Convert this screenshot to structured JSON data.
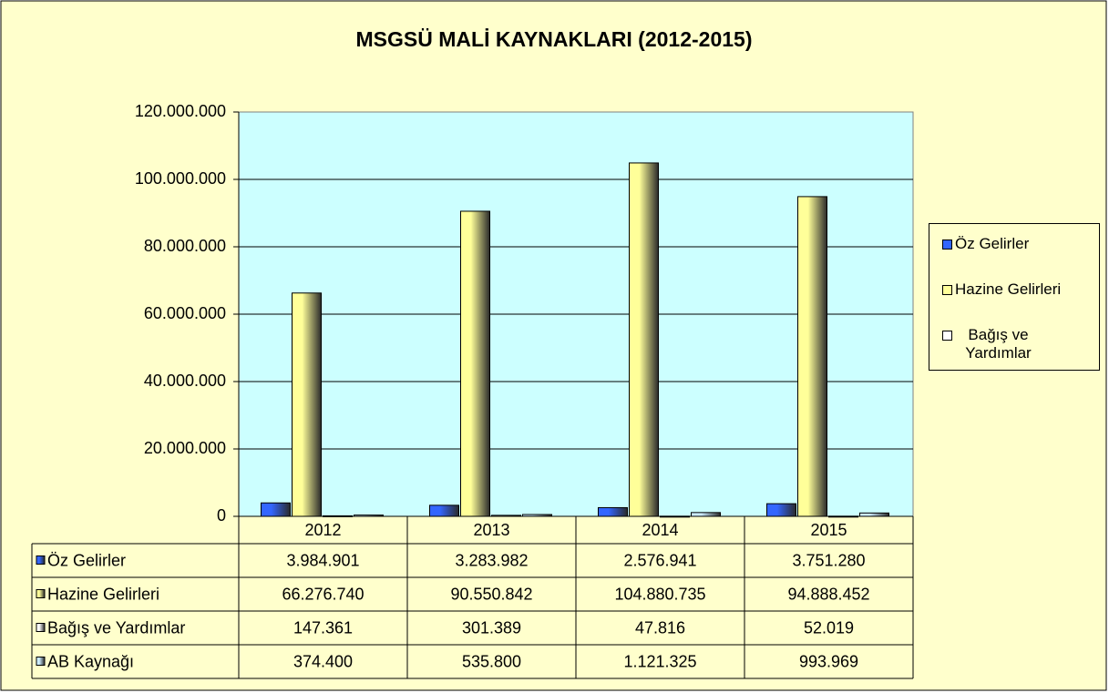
{
  "chart_data": {
    "type": "bar",
    "title": "MSGSÜ MALİ KAYNAKLARI (2012-2015)",
    "categories": [
      "2012",
      "2013",
      "2014",
      "2015"
    ],
    "series": [
      {
        "name": "Öz Gelirler",
        "color": "#3366ff",
        "values": [
          3984901,
          3283982,
          2576941,
          3751280
        ],
        "value_labels": [
          "3.984.901",
          "3.283.982",
          "2.576.941",
          "3.751.280"
        ]
      },
      {
        "name": "Hazine Gelirleri",
        "color": "#ffff99",
        "values": [
          66276740,
          90550842,
          104880735,
          94888452
        ],
        "value_labels": [
          "66.276.740",
          "90.550.842",
          "104.880.735",
          "94.888.452"
        ]
      },
      {
        "name": "Bağış ve Yardımlar",
        "color": "#ffffff",
        "values": [
          147361,
          301389,
          47816,
          52019
        ],
        "value_labels": [
          "147.361",
          "301.389",
          "47.816",
          "52.019"
        ]
      },
      {
        "name": "AB Kaynağı",
        "color": "#ccecff",
        "values": [
          374400,
          535800,
          1121325,
          993969
        ],
        "value_labels": [
          "374.400",
          "535.800",
          "1.121.325",
          "993.969"
        ],
        "show_in_legend": false
      }
    ],
    "ylim": [
      0,
      120000000
    ],
    "yticks": [
      0,
      {
        "value": 20000000,
        "label": "20.000.000"
      },
      {
        "value": 40000000,
        "label": "40.000.000"
      },
      {
        "value": 60000000,
        "label": "60.000.000"
      },
      {
        "value": 80000000,
        "label": "80.000.000"
      },
      {
        "value": 100000000,
        "label": "100.000.000"
      },
      {
        "value": 120000000,
        "label": "120.000.000"
      }
    ],
    "grid": true,
    "legend": "right",
    "data_table": true
  }
}
